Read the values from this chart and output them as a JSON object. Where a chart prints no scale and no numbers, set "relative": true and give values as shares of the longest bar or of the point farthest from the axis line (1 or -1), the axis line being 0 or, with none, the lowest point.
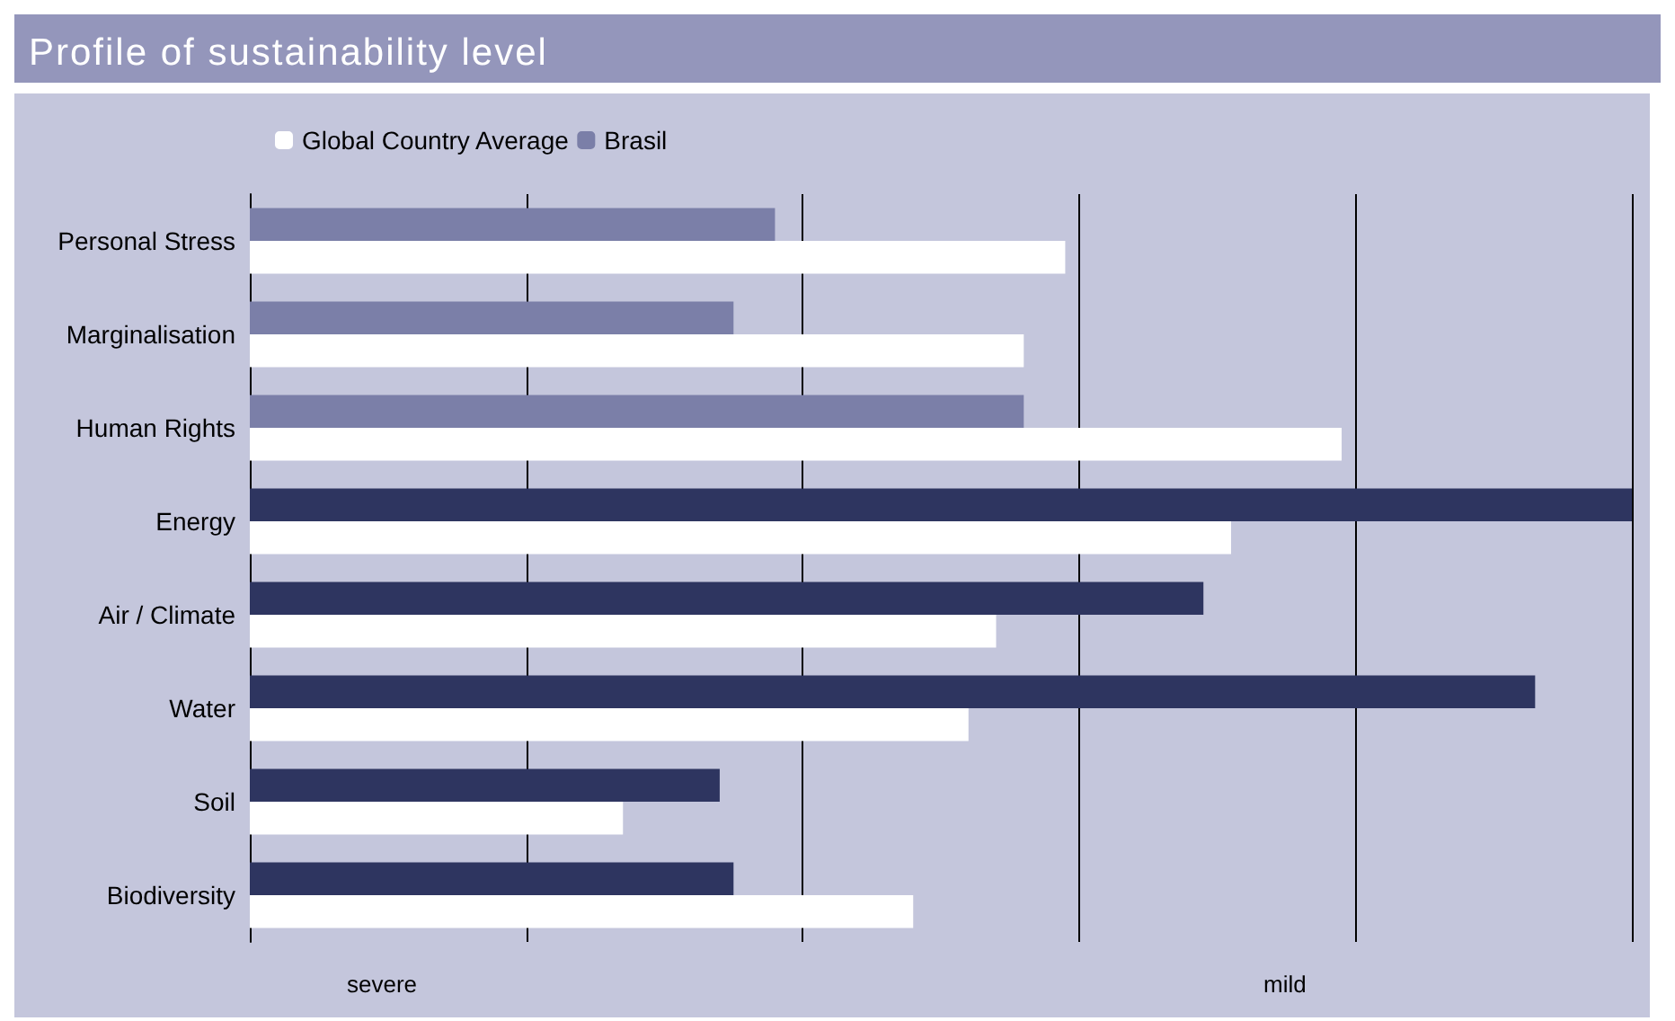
{
  "chart_data": {
    "type": "bar",
    "orientation": "horizontal",
    "relative": true,
    "title": "Profile of sustainability level",
    "categories": [
      "Personal Stress",
      "Marginalisation",
      "Human Rights",
      "Energy",
      "Air / Climate",
      "Water",
      "Soil",
      "Biodiversity"
    ],
    "series": [
      {
        "name": "Global Country Average",
        "color": "#ffffff",
        "values": [
          0.59,
          0.56,
          0.79,
          0.71,
          0.54,
          0.52,
          0.27,
          0.48
        ]
      },
      {
        "name": "Brasil",
        "color": "#7b7fa8",
        "colors": [
          "#7b7fa8",
          "#7b7fa8",
          "#7b7fa8",
          "#2e3560",
          "#2e3560",
          "#2e3560",
          "#2e3560",
          "#2e3560"
        ],
        "values": [
          0.38,
          0.35,
          0.56,
          1,
          0.69,
          0.93,
          0.34,
          0.35
        ]
      }
    ],
    "annotations": [
      "severe",
      "mild"
    ],
    "grid": "x",
    "legend": "top left"
  }
}
